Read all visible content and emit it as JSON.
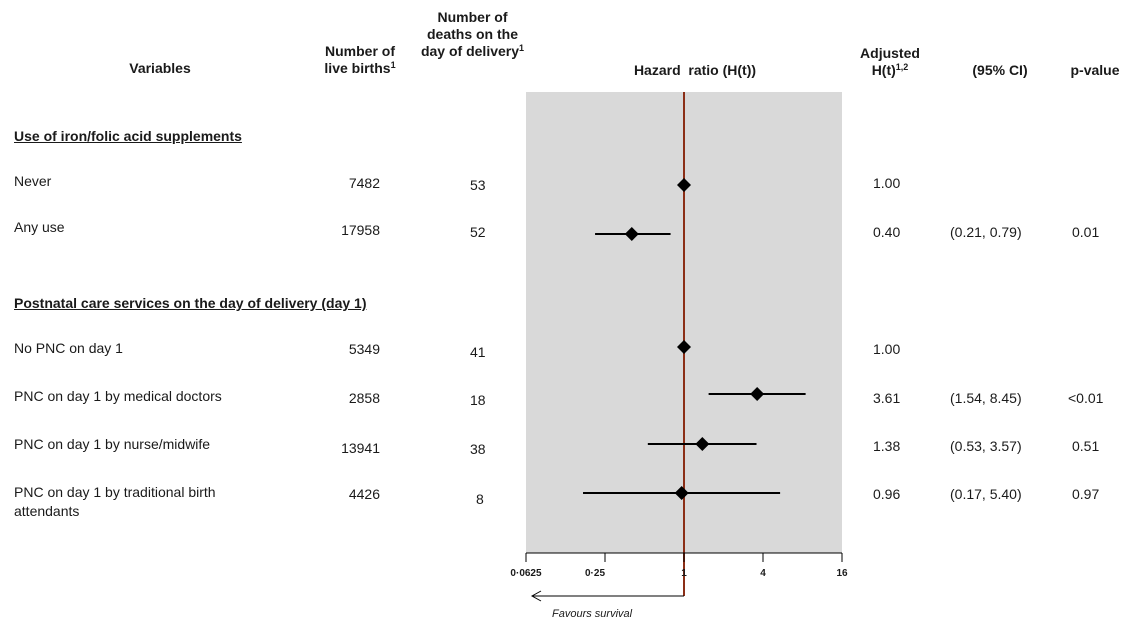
{
  "headers": {
    "variables": "Variables",
    "births_line1": "Number of",
    "births_line2": "live births",
    "births_sup": "1",
    "deaths_line1": "Number of",
    "deaths_line2": "deaths on the",
    "deaths_line3": "day of delivery",
    "deaths_sup": "1",
    "hazard": "Hazard  ratio (H(t))",
    "adj_line1": "Adjusted",
    "adj_line2": "H(t)",
    "adj_sup": "1,2",
    "ci": "(95% CI)",
    "pvalue": "p-value"
  },
  "sections": [
    {
      "title": "Use of iron/folic acid supplements"
    },
    {
      "title": "Postnatal care services on the day of delivery (day 1)"
    }
  ],
  "rows": [
    {
      "variable": "Never",
      "births": "7482",
      "deaths": "53",
      "hr": "1.00",
      "ci": "",
      "p": ""
    },
    {
      "variable": "Any use",
      "births": "17958",
      "deaths": "52",
      "hr": "0.40",
      "ci": "(0.21, 0.79)",
      "p": "0.01"
    },
    {
      "variable": "No PNC on day 1",
      "births": "5349",
      "deaths": "41",
      "hr": "1.00",
      "ci": "",
      "p": ""
    },
    {
      "variable": "PNC on day 1 by medical doctors",
      "births": "2858",
      "deaths": "18",
      "hr": "3.61",
      "ci": "(1.54, 8.45)",
      "p": "<0.01"
    },
    {
      "variable": "PNC on day 1 by nurse/midwife",
      "births": "13941",
      "deaths": "38",
      "hr": "1.38",
      "ci": "(0.53, 3.57)",
      "p": "0.51"
    },
    {
      "variable_line1": "PNC on day 1 by traditional birth",
      "variable_line2": "attendants",
      "births": "4426",
      "deaths": "8",
      "hr": "0.96",
      "ci": "(0.17, 5.40)",
      "p": "0.97"
    }
  ],
  "axis": {
    "ticks": [
      "0·0625",
      "0·25",
      "1",
      "4",
      "16"
    ],
    "arrow_label": "Favours survival"
  },
  "colors": {
    "panel": "#d9d9d9",
    "reference_line": "#8b2e16",
    "marker": "#000000"
  },
  "chart_data": {
    "type": "forest",
    "x_scale": "log",
    "xlim": [
      0.0625,
      16
    ],
    "x_ticks": [
      0.0625,
      0.25,
      1,
      4,
      16
    ],
    "reference": 1,
    "points": [
      {
        "label": "Never",
        "hr": 1.0,
        "lo": null,
        "hi": null
      },
      {
        "label": "Any use",
        "hr": 0.4,
        "lo": 0.21,
        "hi": 0.79
      },
      {
        "label": "No PNC on day 1",
        "hr": 1.0,
        "lo": null,
        "hi": null
      },
      {
        "label": "PNC on day 1 by medical doctors",
        "hr": 3.61,
        "lo": 1.54,
        "hi": 8.45
      },
      {
        "label": "PNC on day 1 by nurse/midwife",
        "hr": 1.38,
        "lo": 0.53,
        "hi": 3.57
      },
      {
        "label": "PNC on day 1 by traditional birth attendants",
        "hr": 0.96,
        "lo": 0.17,
        "hi": 5.4
      }
    ]
  }
}
